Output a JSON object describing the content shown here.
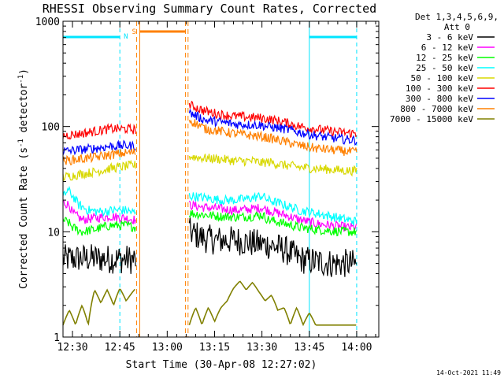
{
  "chart_data": {
    "type": "line",
    "title": "RHESSI Observing Summary Count Rates, Corrected",
    "xlabel": "Start Time (30-Apr-08 12:27:02)",
    "ylabel_main": "Corrected Count Rate (s",
    "ylabel_sup1": "-1",
    "ylabel_mid": " detector",
    "ylabel_sup2": "-1",
    "ylabel_end": ")",
    "x_unit": "minutes after 12:27",
    "xlim": [
      0,
      100
    ],
    "ylim": [
      1,
      1000
    ],
    "yscale": "log",
    "x_ticks": [
      {
        "v": 3,
        "label": "12:30"
      },
      {
        "v": 18,
        "label": "12:45"
      },
      {
        "v": 33,
        "label": "13:00"
      },
      {
        "v": 48,
        "label": "13:15"
      },
      {
        "v": 63,
        "label": "13:30"
      },
      {
        "v": 78,
        "label": "13:45"
      },
      {
        "v": 93,
        "label": "14:00"
      }
    ],
    "y_ticks": [
      {
        "v": 1,
        "label": "1"
      },
      {
        "v": 10,
        "label": "10"
      },
      {
        "v": 100,
        "label": "100"
      },
      {
        "v": 1000,
        "label": "1000"
      }
    ],
    "legend_header": [
      "Det 1,3,4,5,6,9,",
      "Att 0"
    ],
    "legend_position": "right",
    "gap": [
      23.3,
      39.6
    ],
    "series": [
      {
        "name": "3 - 6 keV",
        "color": "#000000",
        "segments": [
          [
            [
              0,
              5.5
            ],
            [
              5,
              5.6
            ],
            [
              10,
              5.6
            ],
            [
              15,
              5.5
            ],
            [
              20,
              5.5
            ],
            [
              23,
              5.4
            ]
          ],
          [
            [
              40,
              10
            ],
            [
              44,
              8.8
            ],
            [
              48,
              8.3
            ],
            [
              55,
              8.3
            ],
            [
              60,
              7.8
            ],
            [
              65,
              7.5
            ],
            [
              70,
              6.8
            ],
            [
              75,
              5.5
            ],
            [
              80,
              5.2
            ],
            [
              85,
              5.0
            ],
            [
              90,
              5.0
            ],
            [
              93,
              4.9
            ]
          ]
        ]
      },
      {
        "name": "6 - 12 keV",
        "color": "#ff00ff",
        "segments": [
          [
            [
              0,
              19
            ],
            [
              2,
              18
            ],
            [
              3,
              15
            ],
            [
              6,
              13
            ],
            [
              10,
              13.5
            ],
            [
              15,
              14
            ],
            [
              20,
              13.5
            ],
            [
              23,
              13
            ]
          ],
          [
            [
              40,
              18
            ],
            [
              45,
              17
            ],
            [
              50,
              16.5
            ],
            [
              55,
              16
            ],
            [
              60,
              16.5
            ],
            [
              63,
              17
            ],
            [
              65,
              16
            ],
            [
              70,
              14.5
            ],
            [
              75,
              13
            ],
            [
              80,
              12
            ],
            [
              85,
              11.5
            ],
            [
              90,
              11
            ],
            [
              93,
              11
            ]
          ]
        ]
      },
      {
        "name": "12 - 25 keV",
        "color": "#00ff00",
        "segments": [
          [
            [
              0,
              13
            ],
            [
              2,
              12
            ],
            [
              3,
              11
            ],
            [
              6,
              10
            ],
            [
              10,
              10.5
            ],
            [
              15,
              11.5
            ],
            [
              20,
              11.5
            ],
            [
              23,
              11
            ]
          ],
          [
            [
              40,
              15
            ],
            [
              45,
              14.5
            ],
            [
              50,
              14
            ],
            [
              55,
              13.8
            ],
            [
              60,
              14
            ],
            [
              63,
              14.5
            ],
            [
              65,
              13
            ],
            [
              70,
              12
            ],
            [
              75,
              11
            ],
            [
              80,
              10.5
            ],
            [
              85,
              10.2
            ],
            [
              90,
              10
            ],
            [
              93,
              10
            ]
          ]
        ]
      },
      {
        "name": "25 - 50 keV",
        "color": "#00ffff",
        "segments": [
          [
            [
              0,
              21
            ],
            [
              1.5,
              25
            ],
            [
              3,
              22
            ],
            [
              5,
              18
            ],
            [
              8,
              16
            ],
            [
              12,
              15.5
            ],
            [
              16,
              16
            ],
            [
              20,
              16
            ],
            [
              23,
              15
            ]
          ],
          [
            [
              40,
              22
            ],
            [
              45,
              21
            ],
            [
              50,
              20
            ],
            [
              55,
              20
            ],
            [
              60,
              21
            ],
            [
              63,
              22
            ],
            [
              65,
              20
            ],
            [
              70,
              18
            ],
            [
              75,
              16
            ],
            [
              80,
              15
            ],
            [
              85,
              14
            ],
            [
              90,
              13
            ],
            [
              93,
              12.5
            ]
          ]
        ]
      },
      {
        "name": "50 - 100 keV",
        "color": "#d8d800",
        "segments": [
          [
            [
              0,
              33
            ],
            [
              5,
              35
            ],
            [
              10,
              37
            ],
            [
              15,
              40
            ],
            [
              20,
              42
            ],
            [
              23,
              43
            ]
          ],
          [
            [
              40,
              52
            ],
            [
              45,
              50
            ],
            [
              50,
              49
            ],
            [
              55,
              47
            ],
            [
              60,
              47
            ],
            [
              63,
              45
            ],
            [
              65,
              46
            ],
            [
              70,
              43
            ],
            [
              75,
              41
            ],
            [
              80,
              40
            ],
            [
              85,
              39
            ],
            [
              90,
              38
            ],
            [
              93,
              38
            ]
          ]
        ]
      },
      {
        "name": "100 - 300 keV",
        "color": "#ff0000",
        "segments": [
          [
            [
              0,
              82
            ],
            [
              5,
              85
            ],
            [
              10,
              90
            ],
            [
              15,
              95
            ],
            [
              20,
              95
            ],
            [
              23,
              93
            ]
          ],
          [
            [
              40,
              160
            ],
            [
              45,
              140
            ],
            [
              50,
              130
            ],
            [
              55,
              125
            ],
            [
              60,
              122
            ],
            [
              63,
              120
            ],
            [
              65,
              118
            ],
            [
              70,
              110
            ],
            [
              75,
              100
            ],
            [
              80,
              95
            ],
            [
              85,
              90
            ],
            [
              90,
              87
            ],
            [
              93,
              86
            ]
          ]
        ]
      },
      {
        "name": "300 - 800 keV",
        "color": "#0000ff",
        "segments": [
          [
            [
              0,
              58
            ],
            [
              5,
              60
            ],
            [
              10,
              62
            ],
            [
              15,
              65
            ],
            [
              20,
              66
            ],
            [
              23,
              65
            ]
          ],
          [
            [
              40,
              135
            ],
            [
              45,
              115
            ],
            [
              50,
              110
            ],
            [
              55,
              105
            ],
            [
              60,
              104
            ],
            [
              63,
              103
            ],
            [
              65,
              100
            ],
            [
              70,
              95
            ],
            [
              75,
              88
            ],
            [
              80,
              82
            ],
            [
              85,
              78
            ],
            [
              90,
              75
            ],
            [
              93,
              74
            ]
          ]
        ]
      },
      {
        "name": "800 - 7000 keV",
        "color": "#ff8000",
        "segments": [
          [
            [
              0,
              47
            ],
            [
              5,
              49
            ],
            [
              10,
              51
            ],
            [
              15,
              54
            ],
            [
              20,
              56
            ],
            [
              23,
              57
            ]
          ],
          [
            [
              40,
              115
            ],
            [
              45,
              95
            ],
            [
              50,
              90
            ],
            [
              55,
              85
            ],
            [
              60,
              82
            ],
            [
              63,
              80
            ],
            [
              65,
              78
            ],
            [
              70,
              72
            ],
            [
              75,
              66
            ],
            [
              80,
              62
            ],
            [
              85,
              60
            ],
            [
              90,
              58
            ],
            [
              93,
              57
            ]
          ]
        ]
      },
      {
        "name": "7000 - 15000 keV",
        "color": "#808000",
        "segments": [
          [
            [
              0,
              1.3
            ],
            [
              2,
              1.8
            ],
            [
              4,
              1.3
            ],
            [
              6,
              2
            ],
            [
              8,
              1.3
            ],
            [
              10,
              2.8
            ],
            [
              12,
              2.1
            ],
            [
              14,
              2.8
            ],
            [
              16,
              2
            ],
            [
              18,
              2.9
            ],
            [
              20,
              2.2
            ],
            [
              23,
              2.9
            ]
          ],
          [
            [
              40,
              1.3
            ],
            [
              42,
              1.9
            ],
            [
              44,
              1.3
            ],
            [
              46,
              1.9
            ],
            [
              48,
              1.4
            ],
            [
              50,
              1.9
            ],
            [
              52,
              2.2
            ],
            [
              54,
              2.9
            ],
            [
              56,
              3.4
            ],
            [
              58,
              2.8
            ],
            [
              60,
              3.3
            ],
            [
              62,
              2.7
            ],
            [
              64,
              2.2
            ],
            [
              66,
              2.5
            ],
            [
              68,
              1.8
            ],
            [
              70,
              1.9
            ],
            [
              72,
              1.3
            ],
            [
              74,
              1.9
            ],
            [
              76,
              1.3
            ],
            [
              78,
              1.7
            ],
            [
              80,
              1.3
            ],
            [
              84,
              1.3
            ],
            [
              88,
              1.3
            ],
            [
              93,
              1.3
            ]
          ]
        ]
      }
    ],
    "flags": {
      "n_label": "N",
      "s_label": "S",
      "n_segments": [
        [
          0,
          18
        ],
        [
          78,
          93
        ]
      ],
      "s_segment": [
        24.3,
        38.8
      ],
      "n_color": "#00e5ff",
      "s_color": "#ff8000"
    },
    "timestamp": "14-Oct-2021 11:49"
  }
}
